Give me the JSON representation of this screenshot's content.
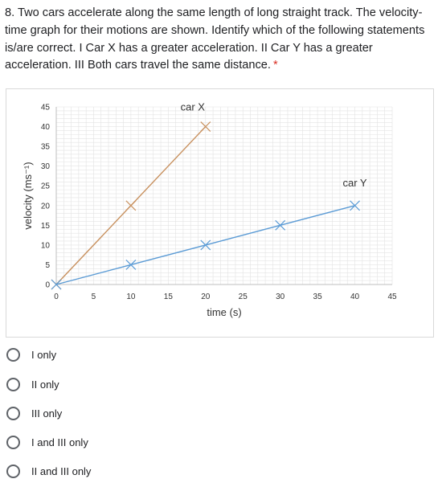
{
  "question": {
    "number_and_text": "8. Two cars accelerate along the same length of long straight track. The velocity-time graph for their motions are shown. Identify which of the following statements is/are correct. I Car X has a greater acceleration. II Car Y has a greater acceleration. III Both cars travel the same distance.",
    "required_marker": "*"
  },
  "chart_data": {
    "type": "line",
    "xlabel": "time (s)",
    "ylabel": "velocity (ms⁻¹)",
    "xlim": [
      0,
      45
    ],
    "ylim": [
      0,
      45
    ],
    "x_ticks": [
      "0",
      "5",
      "10",
      "15",
      "20",
      "25",
      "30",
      "35",
      "40",
      "45"
    ],
    "y_ticks": [
      "0",
      "5",
      "10",
      "15",
      "20",
      "25",
      "30",
      "35",
      "40",
      "45"
    ],
    "grid": true,
    "series": [
      {
        "name": "car X",
        "color": "#c8915f",
        "x": [
          0,
          10,
          20
        ],
        "y": [
          0,
          20,
          40
        ]
      },
      {
        "name": "car Y",
        "color": "#5b9bd5",
        "x": [
          0,
          10,
          20,
          30,
          40
        ],
        "y": [
          0,
          5,
          10,
          15,
          20
        ]
      }
    ]
  },
  "options": [
    {
      "label": "I only"
    },
    {
      "label": "II only"
    },
    {
      "label": "III only"
    },
    {
      "label": "I and III only"
    },
    {
      "label": "II and III only"
    }
  ],
  "colors": {
    "radio_border": "#5f6368",
    "grid": "#e3e3e3",
    "axis": "#bfbfbf"
  }
}
